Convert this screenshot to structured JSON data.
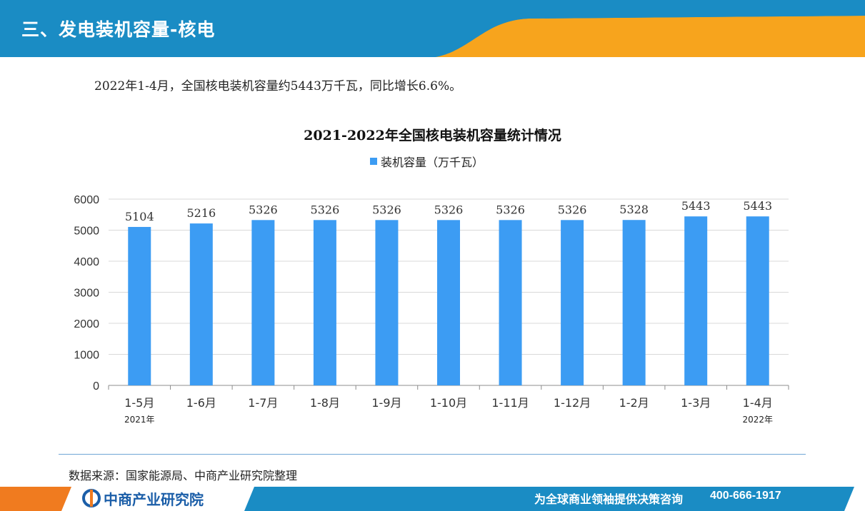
{
  "header": {
    "title": "三、发电装机容量-核电"
  },
  "summary": "2022年1-4月，全国核电装机容量约5443万千瓦，同比增长6.6%。",
  "colors": {
    "bar": "#3c9cf3",
    "header_blue": "#1a8cc4",
    "header_orange": "#f7a41d",
    "footer_blue": "#1a8cc4",
    "footer_orange": "#f07b1f"
  },
  "chart_data": {
    "type": "bar",
    "title": "2021-2022年全国核电装机容量统计情况",
    "categories": [
      "1-5月",
      "1-6月",
      "1-7月",
      "1-8月",
      "1-9月",
      "1-10月",
      "1-11月",
      "1-12月",
      "1-2月",
      "1-3月",
      "1-4月"
    ],
    "category_notes": [
      "2021年",
      "",
      "",
      "",
      "",
      "",
      "",
      "",
      "",
      "",
      "2022年"
    ],
    "series": [
      {
        "name": "装机容量（万千瓦）",
        "values": [
          5104,
          5216,
          5326,
          5326,
          5326,
          5326,
          5326,
          5326,
          5328,
          5443,
          5443
        ]
      }
    ],
    "ylim": [
      0,
      6000
    ],
    "yticks": [
      0,
      1000,
      2000,
      3000,
      4000,
      5000,
      6000
    ],
    "grid": true,
    "legend": "top-center"
  },
  "footer": {
    "logo": "中商产业研究院",
    "slogan": "为全球商业领袖提供决策咨询",
    "phone": "400-666-1917"
  }
}
